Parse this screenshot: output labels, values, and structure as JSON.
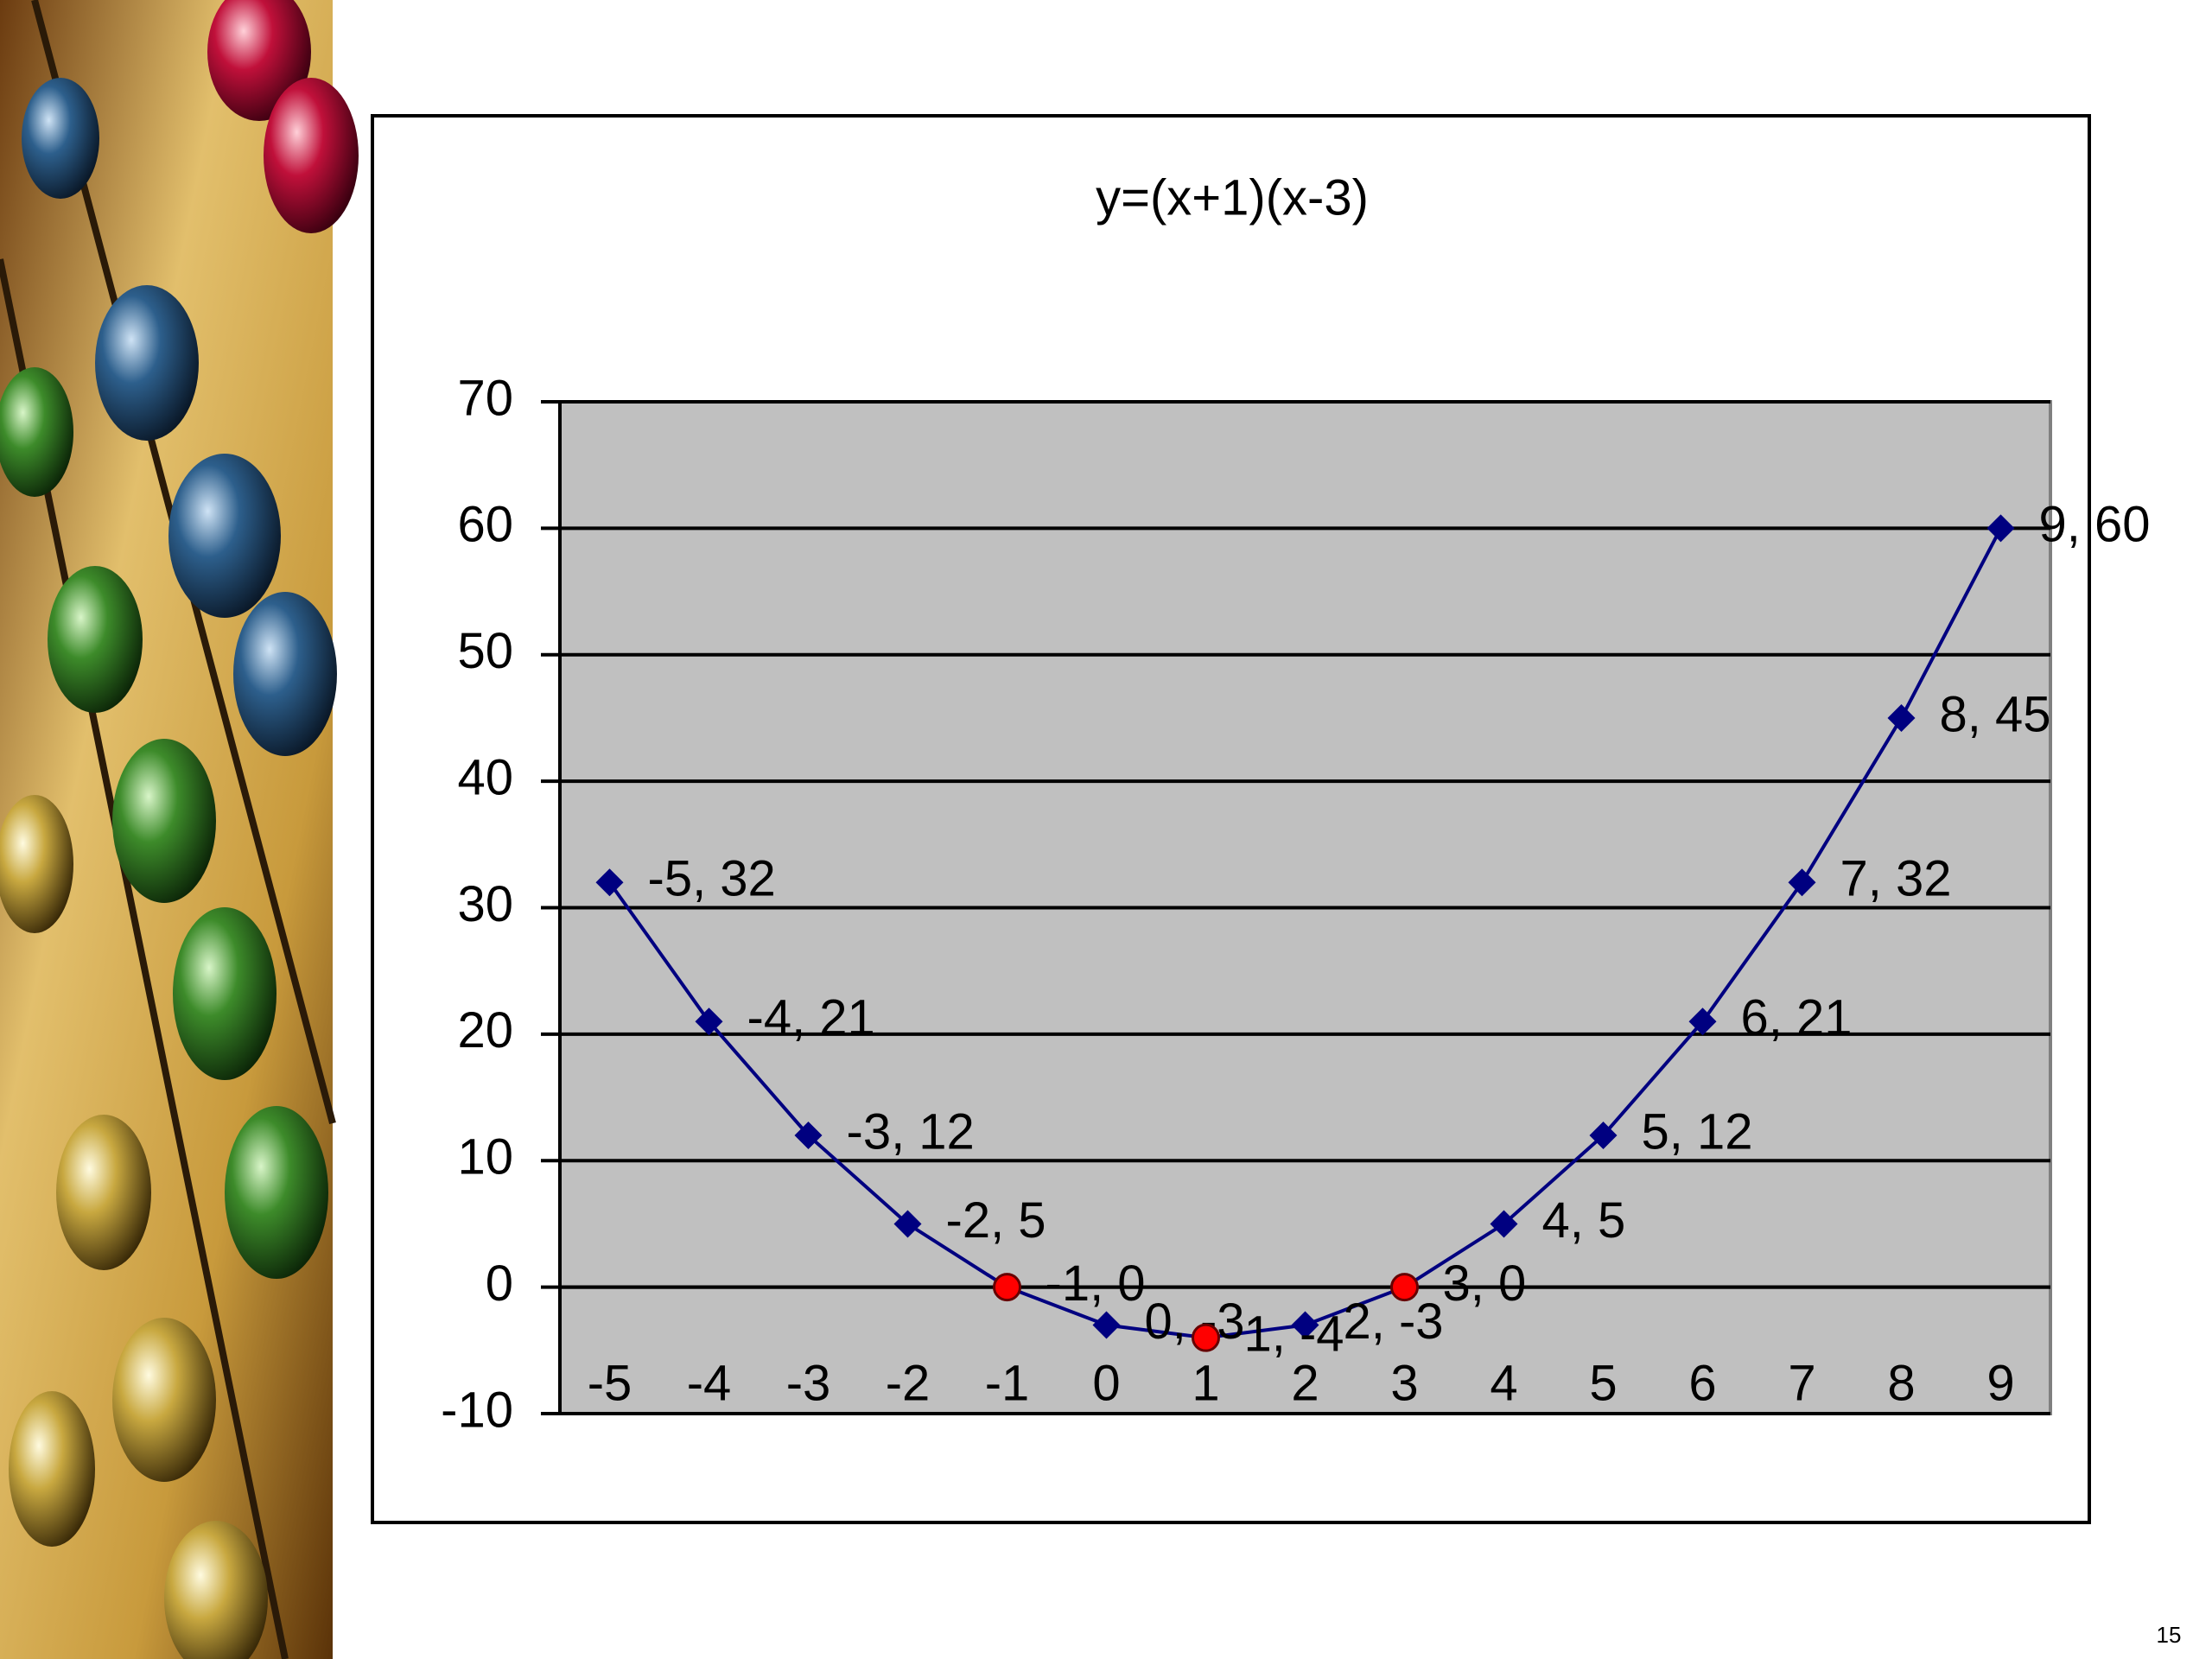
{
  "chart_data": {
    "type": "line",
    "title": "y=(x+1)(x-3)",
    "x": [
      -5,
      -4,
      -3,
      -2,
      -1,
      0,
      1,
      2,
      3,
      4,
      5,
      6,
      7,
      8,
      9
    ],
    "values": [
      32,
      21,
      12,
      5,
      0,
      -3,
      -4,
      -3,
      0,
      5,
      12,
      21,
      32,
      45,
      60
    ],
    "value_labels": [
      "-5, 32",
      "-4, 21",
      "-3, 12",
      "-2, 5",
      "-1, 0",
      "0, -3",
      "1, -4",
      "2, -3",
      "3, 0",
      "4, 5",
      "5, 12",
      "6, 21",
      "7, 32",
      "8, 45",
      "9, 60"
    ],
    "color": "#000080",
    "highlights": {
      "x": [
        -1,
        1,
        3
      ],
      "values": [
        0,
        -4,
        0
      ],
      "color": "#ff0000"
    },
    "xlim": [
      -5.5,
      9.5
    ],
    "xticks": [
      -5,
      -4,
      -3,
      -2,
      -1,
      0,
      1,
      2,
      3,
      4,
      5,
      6,
      7,
      8,
      9
    ],
    "ylim": [
      -10,
      70
    ],
    "yticks": [
      -10,
      0,
      10,
      20,
      30,
      40,
      50,
      60,
      70
    ],
    "grid": true
  },
  "page_number": "15"
}
